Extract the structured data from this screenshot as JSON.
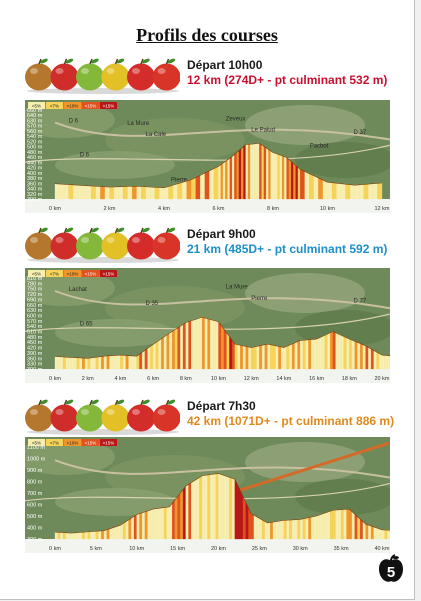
{
  "page": {
    "title": "Profils des courses",
    "page_number": "5"
  },
  "legend": [
    "<5%",
    "<7%",
    "<10%",
    "<15%",
    ">15%"
  ],
  "races": [
    {
      "start": "Départ 10h00",
      "desc": "12 km (274D+ - pt culminant 532 m)",
      "color": "#c8102e",
      "map_labels": [
        "D 6",
        "La Cale",
        "Zeveux",
        "Le Palud",
        "D 37",
        "D 6",
        "Pacbot",
        "Faintes",
        "La Mure",
        "Pierre"
      ],
      "chart_data": {
        "type": "area",
        "x_unit": "km",
        "xticks": [
          "0 km",
          "2 km",
          "4 km",
          "6 km",
          "8 km",
          "10 km",
          "12 km"
        ],
        "yticks": [
          "300 m",
          "320 m",
          "340 m",
          "360 m",
          "380 m",
          "400 m",
          "420 m",
          "440 m",
          "460 m",
          "480 m",
          "500 m",
          "520 m",
          "540 m",
          "560 m",
          "570 m",
          "630 m",
          "640 m",
          "660 m"
        ],
        "x": [
          0,
          1,
          2,
          3,
          4,
          5,
          6,
          6.5,
          7,
          7.5,
          8,
          8.5,
          9,
          10,
          11,
          12
        ],
        "y": [
          362,
          355,
          348,
          352,
          345,
          378,
          432,
          472,
          520,
          525,
          488,
          468,
          420,
          368,
          356,
          365
        ]
      }
    },
    {
      "start": "Départ 9h00",
      "desc": "21 km (485D+ - pt culminant 592 m)",
      "color": "#1c8fc9",
      "map_labels": [
        "Lachat",
        "D 35",
        "La Mure",
        "Pierre",
        "D 77",
        "D 65"
      ],
      "chart_data": {
        "type": "area",
        "x_unit": "km",
        "xticks": [
          "0 km",
          "2 km",
          "4 km",
          "6 km",
          "8 km",
          "10 km",
          "12 km",
          "14 km",
          "16 km",
          "18 km",
          "20 km"
        ],
        "yticks": [
          "300 m",
          "330 m",
          "360 m",
          "390 m",
          "420 m",
          "450 m",
          "480 m",
          "510 m",
          "540 m",
          "570 m",
          "600 m",
          "630 m",
          "660 m",
          "690 m",
          "720 m",
          "750 m",
          "780 m",
          "810 m"
        ],
        "x": [
          0,
          1,
          2,
          3,
          4,
          5,
          6,
          7,
          8,
          9,
          10,
          11,
          12,
          13,
          14,
          15,
          16,
          17,
          18,
          19,
          20,
          21
        ],
        "y": [
          370,
          365,
          360,
          372,
          378,
          372,
          438,
          500,
          560,
          590,
          565,
          440,
          420,
          440,
          420,
          460,
          468,
          510,
          468,
          430,
          378,
          370
        ]
      }
    },
    {
      "start": "Départ 7h30",
      "desc": "42 km (1071D+ - pt culminant 886 m)",
      "color": "#e0891c",
      "map_labels": [],
      "chart_data": {
        "type": "area",
        "x_unit": "km",
        "xticks": [
          "0 km",
          "5 km",
          "10 km",
          "15 km",
          "20 km",
          "25 km",
          "30 km",
          "35 km",
          "40 km"
        ],
        "yticks": [
          "300 m",
          "400 m",
          "500 m",
          "600 m",
          "700 m",
          "800 m",
          "900 m",
          "1000 m",
          "1100 m"
        ],
        "x": [
          0,
          2,
          4,
          6,
          8,
          10,
          12,
          14,
          16,
          18,
          20,
          22,
          24,
          26,
          28,
          30,
          32,
          34,
          36,
          38,
          40,
          42
        ],
        "y": [
          360,
          352,
          362,
          372,
          420,
          512,
          560,
          580,
          760,
          850,
          870,
          820,
          520,
          440,
          462,
          470,
          500,
          550,
          560,
          430,
          380,
          372
        ]
      }
    }
  ]
}
